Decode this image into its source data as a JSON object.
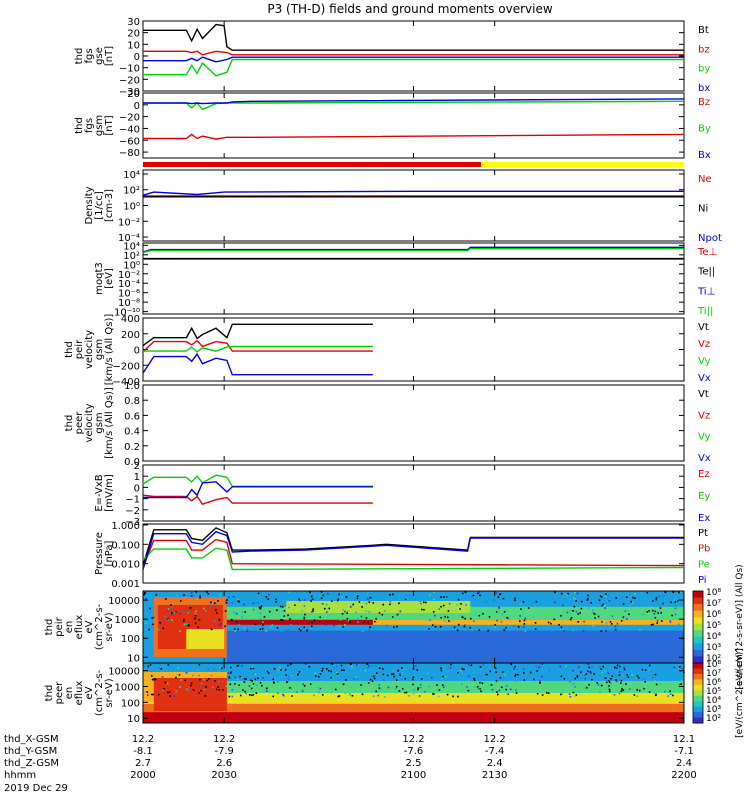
{
  "title": "P3 (TH-D) fields and ground moments overview",
  "colors": {
    "black": "#000000",
    "red": "#e00000",
    "green": "#00d000",
    "blue": "#0000e0",
    "yellow": "#ffff00"
  },
  "chart_data": [
    {
      "type": "line",
      "panel": "fgs_gse",
      "ylabel": [
        "thd",
        "fgs",
        "gse",
        "[nT]"
      ],
      "ylim": [
        -30,
        30
      ],
      "ticks": [
        30,
        20,
        10,
        0,
        -10,
        -20,
        -30
      ],
      "tick_labels": [
        "30",
        "20",
        "10",
        "0",
        "−10",
        "−20",
        "−30"
      ],
      "log": false,
      "series": [
        {
          "name": "Bt",
          "color": "#000000",
          "x": [
            2000,
            2005,
            2016,
            2018,
            2020,
            2022,
            2027,
            2030,
            2031,
            2033,
            2040,
            2200
          ],
          "y": [
            22,
            22,
            22,
            13,
            23,
            15,
            27,
            26,
            8,
            5,
            5,
            5
          ]
        },
        {
          "name": "bz",
          "color": "#e00000",
          "x": [
            2000,
            2004,
            2016,
            2018,
            2020,
            2022,
            2027,
            2031,
            2033,
            2040,
            2200
          ],
          "y": [
            4,
            4,
            4,
            3,
            4,
            1,
            4,
            3,
            1,
            1,
            1
          ]
        },
        {
          "name": "by",
          "color": "#00d000",
          "x": [
            2000,
            2004,
            2016,
            2018,
            2020,
            2022,
            2027,
            2031,
            2033,
            2040,
            2200
          ],
          "y": [
            -16,
            -16,
            -16,
            -8,
            -15,
            -6,
            -17,
            -14,
            -3,
            -3,
            -3
          ]
        },
        {
          "name": "bx",
          "color": "#0000e0",
          "x": [
            2000,
            2004,
            2016,
            2018,
            2020,
            2022,
            2027,
            2031,
            2033,
            2040,
            2200
          ],
          "y": [
            -4,
            -4,
            -4,
            -2,
            -4,
            -1,
            -5,
            -3,
            -1,
            -1,
            -1
          ]
        }
      ]
    },
    {
      "type": "line",
      "panel": "fgs_gsm",
      "ylabel": [
        "thd",
        "fgs",
        "gsm",
        "[nT]"
      ],
      "ylim": [
        -90,
        20
      ],
      "ticks": [
        20,
        0,
        -20,
        -40,
        -60,
        -80
      ],
      "tick_labels": [
        "20",
        "0",
        "−20",
        "−40",
        "−60",
        "−80"
      ],
      "log": false,
      "series": [
        {
          "name": "Bz",
          "color": "#e00000",
          "x": [
            2000,
            2004,
            2016,
            2018,
            2020,
            2022,
            2027,
            2031,
            2033,
            2040,
            2200
          ],
          "y": [
            -57,
            -57,
            -57,
            -50,
            -57,
            -53,
            -58,
            -55,
            -55,
            -55,
            -50
          ]
        },
        {
          "name": "By",
          "color": "#00d000",
          "x": [
            2000,
            2004,
            2016,
            2018,
            2020,
            2022,
            2027,
            2031,
            2033,
            2040,
            2200
          ],
          "y": [
            3,
            3,
            3,
            -5,
            3,
            -8,
            2,
            3,
            3,
            3,
            6
          ]
        },
        {
          "name": "Bx",
          "color": "#0000e0",
          "x": [
            2000,
            2004,
            2016,
            2018,
            2020,
            2022,
            2027,
            2031,
            2033,
            2040,
            2200
          ],
          "y": [
            3,
            3,
            3,
            2,
            3,
            2,
            3,
            3,
            5,
            6,
            10
          ]
        }
      ]
    },
    {
      "type": "line",
      "panel": "density",
      "ylabel": [
        "Density",
        "[1/cc]",
        "[cm-3]"
      ],
      "ylim": [
        -4.5,
        4.5
      ],
      "log": true,
      "ticks": [
        4,
        2,
        0,
        -2,
        -4
      ],
      "tick_labels": [
        "10⁴",
        "10²",
        "10⁰",
        "10⁻²",
        "10⁻⁴"
      ],
      "series": [
        {
          "name": "Ne",
          "color": "#e00000",
          "x": [
            2000,
            2200
          ],
          "y": [
            1.2,
            1.2
          ]
        },
        {
          "name": "Ni",
          "color": "#000000",
          "x": [
            2000,
            2200
          ],
          "y": [
            1.1,
            1.1
          ]
        },
        {
          "name": "Npot",
          "color": "#0000e0",
          "x": [
            2000,
            2004,
            2020,
            2030,
            2100,
            2200
          ],
          "y": [
            1.3,
            1.7,
            1.4,
            1.7,
            1.8,
            1.8
          ]
        }
      ]
    },
    {
      "type": "line",
      "panel": "temperature",
      "ylabel": [
        "moqt3",
        "[eV]"
      ],
      "ylim": [
        -10.5,
        4.5
      ],
      "log": true,
      "ticks": [
        4,
        2,
        0,
        -2,
        -4,
        -6,
        -8,
        -10
      ],
      "tick_labels": [
        "10⁴",
        "10²",
        "10⁰",
        "10⁻²",
        "10⁻⁴",
        "10⁻⁶",
        "10⁻⁸",
        "10⁻¹⁰"
      ],
      "series": [
        {
          "name": "Te⊥",
          "color": "#e00000",
          "x": [
            2000,
            2200
          ],
          "y": [
            1.1,
            1.1
          ]
        },
        {
          "name": "Te||",
          "color": "#000000",
          "x": [
            2000,
            2200
          ],
          "y": [
            1.2,
            1.2
          ]
        },
        {
          "name": "Ti⊥",
          "color": "#0000e0",
          "x": [
            2000,
            2003,
            2120,
            2121,
            2200
          ],
          "y": [
            2.6,
            3.1,
            3.1,
            3.6,
            3.6
          ]
        },
        {
          "name": "Ti||",
          "color": "#00d000",
          "x": [
            2000,
            2003,
            2120,
            2121,
            2200
          ],
          "y": [
            2.5,
            2.9,
            2.9,
            3.3,
            3.3
          ]
        }
      ]
    },
    {
      "type": "line",
      "panel": "peir_velocity",
      "ylabel": [
        "thd",
        "peir",
        "velocity",
        "gsm",
        "[km/s (All Qs)]"
      ],
      "ylim": [
        -400,
        400
      ],
      "log": false,
      "ticks": [
        400,
        200,
        0,
        -200,
        -400
      ],
      "tick_labels": [
        "400",
        "200",
        "0",
        "−200",
        "−400"
      ],
      "series": [
        {
          "name": "Vt",
          "color": "#000000",
          "x": [
            2000,
            2004,
            2016,
            2018,
            2020,
            2022,
            2027,
            2031,
            2033,
            2085
          ],
          "y": [
            50,
            150,
            150,
            270,
            140,
            190,
            270,
            150,
            320,
            320
          ]
        },
        {
          "name": "Vz",
          "color": "#e00000",
          "x": [
            2000,
            2004,
            2016,
            2018,
            2020,
            2022,
            2027,
            2031,
            2033,
            2085
          ],
          "y": [
            -30,
            100,
            100,
            60,
            110,
            40,
            100,
            80,
            -20,
            -20
          ]
        },
        {
          "name": "Vy",
          "color": "#00d000",
          "x": [
            2000,
            2004,
            2016,
            2018,
            2020,
            2022,
            2027,
            2031,
            2033,
            2085
          ],
          "y": [
            -20,
            -20,
            -20,
            30,
            -30,
            20,
            -20,
            30,
            40,
            40
          ]
        },
        {
          "name": "Vx",
          "color": "#0000e0",
          "x": [
            2000,
            2004,
            2016,
            2018,
            2020,
            2022,
            2027,
            2031,
            2033,
            2085
          ],
          "y": [
            -300,
            -90,
            -90,
            -150,
            -60,
            -180,
            -110,
            -140,
            -320,
            -320
          ]
        }
      ]
    },
    {
      "type": "line",
      "panel": "peer_velocity",
      "ylabel": [
        "thd",
        "peer",
        "velocity",
        "gsm",
        "[km/s (All Qs)]"
      ],
      "ylim": [
        0,
        1
      ],
      "log": false,
      "ticks": [
        1.0,
        0.8,
        0.6,
        0.4,
        0.2,
        0.0
      ],
      "tick_labels": [
        "1.0",
        "0.8",
        "0.6",
        "0.4",
        "0.2",
        "0.0"
      ],
      "series": [
        {
          "name": "Vt",
          "color": "#000000",
          "x": [],
          "y": []
        },
        {
          "name": "Vz",
          "color": "#e00000",
          "x": [],
          "y": []
        },
        {
          "name": "Vy",
          "color": "#00d000",
          "x": [],
          "y": []
        },
        {
          "name": "Vx",
          "color": "#0000e0",
          "x": [],
          "y": []
        }
      ]
    },
    {
      "type": "line",
      "panel": "efield",
      "ylabel": [
        "E=-VxB",
        "[mV/m]"
      ],
      "ylim": [
        -3,
        2
      ],
      "log": false,
      "ticks": [
        2,
        1,
        0,
        -1,
        -2,
        -3
      ],
      "tick_labels": [
        "2",
        "1",
        "0",
        "−1",
        "−2",
        "−3"
      ],
      "series": [
        {
          "name": "Ez",
          "color": "#e00000",
          "x": [
            2000,
            2004,
            2016,
            2018,
            2020,
            2022,
            2027,
            2031,
            2033,
            2085
          ],
          "y": [
            -0.7,
            -0.8,
            -0.8,
            -1.2,
            -0.8,
            -1.5,
            -1.1,
            -0.9,
            -1.4,
            -1.4
          ]
        },
        {
          "name": "Ey",
          "color": "#00d000",
          "x": [
            2000,
            2004,
            2016,
            2018,
            2020,
            2022,
            2027,
            2031,
            2033,
            2085
          ],
          "y": [
            0.3,
            0.9,
            0.9,
            0.5,
            1.0,
            0.4,
            1.1,
            0.9,
            0.1,
            0.1
          ]
        },
        {
          "name": "Ex",
          "color": "#0000e0",
          "x": [
            2000,
            2004,
            2016,
            2018,
            2020,
            2022,
            2027,
            2031,
            2033,
            2085
          ],
          "y": [
            -0.9,
            -0.9,
            -0.9,
            -0.2,
            -0.7,
            0.4,
            0.5,
            -0.4,
            0.05,
            0.05
          ]
        }
      ]
    },
    {
      "type": "line",
      "panel": "pressure",
      "ylabel": [
        "Pressure",
        "[nPa]"
      ],
      "ylim": [
        -3,
        0.05
      ],
      "log": true,
      "ticks": [
        0,
        -1,
        -2,
        -3
      ],
      "tick_labels": [
        "1.000",
        "0.100",
        "0.010",
        "0.001"
      ],
      "series": [
        {
          "name": "Pt",
          "color": "#000000",
          "x": [
            2000,
            2004,
            2016,
            2018,
            2022,
            2027,
            2031,
            2033,
            2040,
            2060,
            2085,
            2090,
            2120,
            2121,
            2200
          ],
          "y": [
            -2.1,
            -0.25,
            -0.25,
            -0.7,
            -0.8,
            -0.15,
            -0.4,
            -1.3,
            -1.3,
            -1.25,
            -1.05,
            -1.0,
            -1.3,
            -0.65,
            -0.65
          ]
        },
        {
          "name": "Pb",
          "color": "#e00000",
          "x": [
            2000,
            2004,
            2016,
            2018,
            2022,
            2027,
            2031,
            2033,
            2200
          ],
          "y": [
            -2.2,
            -0.8,
            -0.8,
            -1.3,
            -1.3,
            -0.75,
            -0.9,
            -2.0,
            -2.1
          ]
        },
        {
          "name": "Pe",
          "color": "#00d000",
          "x": [
            2000,
            2004,
            2016,
            2018,
            2022,
            2027,
            2031,
            2033,
            2200
          ],
          "y": [
            -1.8,
            -1.25,
            -1.25,
            -1.7,
            -1.7,
            -1.2,
            -1.3,
            -2.3,
            -2.2
          ]
        },
        {
          "name": "Pi",
          "color": "#0000e0",
          "x": [
            2000,
            2004,
            2016,
            2018,
            2022,
            2027,
            2031,
            2033,
            2040,
            2060,
            2085,
            2090,
            2120,
            2121,
            2200
          ],
          "y": [
            -2.3,
            -0.45,
            -0.45,
            -0.9,
            -1.0,
            -0.35,
            -0.55,
            -1.4,
            -1.35,
            -1.3,
            -1.1,
            -1.05,
            -1.35,
            -0.68,
            -0.68
          ]
        }
      ]
    },
    {
      "type": "heatmap",
      "panel": "peir_spec",
      "ylabel": [
        "thd",
        "peir",
        "en",
        "eflux",
        "eV",
        "(cm^2-s-",
        "sr-eV)"
      ],
      "ylim": [
        5,
        30000
      ],
      "log": true,
      "ticks": [
        10000,
        1000,
        100,
        10
      ],
      "tick_labels": [
        "10000",
        "1000",
        "100",
        "10"
      ],
      "colorbar": {
        "labels": [
          "10⁸",
          "10⁷",
          "10⁶",
          "10⁵",
          "10⁴",
          "10³",
          "10²"
        ],
        "title": "[eV/(cm^2-s-sr-eV)] (All Qs)"
      }
    },
    {
      "type": "heatmap",
      "panel": "peer_spec",
      "ylabel": [
        "thd",
        "peer",
        "en",
        "eflux",
        "eV",
        "(cm^2-s-",
        "sr-eV)"
      ],
      "ylim": [
        5,
        30000
      ],
      "log": true,
      "ticks": [
        10000,
        1000,
        100,
        10
      ],
      "tick_labels": [
        "10000",
        "1000",
        "100",
        "10"
      ],
      "colorbar": {
        "labels": [
          "10⁸",
          "10⁷",
          "10⁶",
          "10⁵",
          "10⁴",
          "10³",
          "10²"
        ],
        "title": "[eV/(cm^2-s-sr-eV)]"
      }
    }
  ],
  "xaxis": {
    "range": [
      2000,
      2200
    ],
    "tick_values": [
      2000,
      2030,
      2100,
      2130,
      2200
    ],
    "rows": [
      {
        "label": "thd_X-GSM",
        "values": [
          "12.2",
          "12.2",
          "12.2",
          "12.2",
          "12.1"
        ]
      },
      {
        "label": "thd_Y-GSM",
        "values": [
          "-8.1",
          "-7.9",
          "-7.6",
          "-7.4",
          "-7.1"
        ]
      },
      {
        "label": "thd_Z-GSM",
        "values": [
          "2.7",
          "2.6",
          "2.5",
          "2.4",
          "2.4"
        ]
      },
      {
        "label": "hhmm",
        "values": [
          "2000",
          "2030",
          "2100",
          "2130",
          "2200"
        ]
      }
    ],
    "date": "2019 Dec 29"
  }
}
